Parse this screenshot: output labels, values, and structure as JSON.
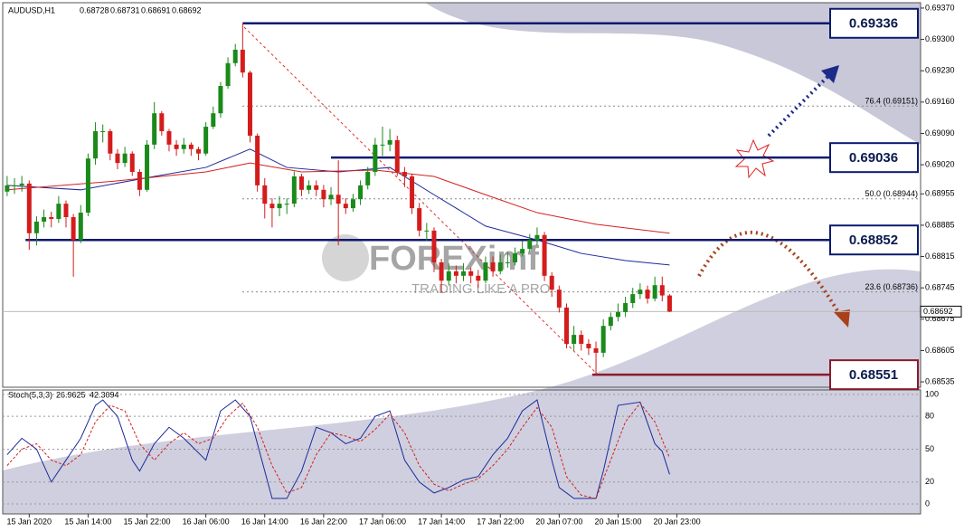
{
  "chart_data": {
    "type": "candlestick",
    "symbol": "AUDUSD,H1",
    "up_color": "#1a8a1a",
    "down_color": "#d41c1c",
    "ohlc": [
      [
        0.6896,
        0.68995,
        0.6895,
        0.68974
      ],
      [
        0.68974,
        0.6899,
        0.68955,
        0.68974
      ],
      [
        0.68974,
        0.68995,
        0.6896,
        0.68978
      ],
      [
        0.68978,
        0.68985,
        0.6883,
        0.68867
      ],
      [
        0.68867,
        0.68905,
        0.6884,
        0.68893
      ],
      [
        0.68893,
        0.6892,
        0.6888,
        0.68903
      ],
      [
        0.68903,
        0.68915,
        0.6888,
        0.68899
      ],
      [
        0.68899,
        0.6895,
        0.6889,
        0.68933
      ],
      [
        0.68933,
        0.6894,
        0.6888,
        0.68903
      ],
      [
        0.68903,
        0.6891,
        0.6877,
        0.68852
      ],
      [
        0.68852,
        0.6893,
        0.68845,
        0.68913
      ],
      [
        0.68913,
        0.69045,
        0.68905,
        0.69034
      ],
      [
        0.69034,
        0.69115,
        0.6902,
        0.69095
      ],
      [
        0.69095,
        0.6911,
        0.6907,
        0.69095
      ],
      [
        0.69095,
        0.691,
        0.6903,
        0.69045
      ],
      [
        0.69045,
        0.69055,
        0.6901,
        0.69024
      ],
      [
        0.69024,
        0.6906,
        0.69015,
        0.69045
      ],
      [
        0.69045,
        0.6905,
        0.68995,
        0.69004
      ],
      [
        0.69004,
        0.6901,
        0.6895,
        0.68964
      ],
      [
        0.68964,
        0.69075,
        0.6896,
        0.69065
      ],
      [
        0.69065,
        0.6916,
        0.69055,
        0.69135
      ],
      [
        0.69135,
        0.6914,
        0.69085,
        0.69095
      ],
      [
        0.69095,
        0.691,
        0.6905,
        0.69065
      ],
      [
        0.69065,
        0.69075,
        0.6904,
        0.69055
      ],
      [
        0.69055,
        0.6908,
        0.69045,
        0.69065
      ],
      [
        0.69065,
        0.6907,
        0.6904,
        0.69055
      ],
      [
        0.69055,
        0.6906,
        0.6903,
        0.69045
      ],
      [
        0.69045,
        0.69115,
        0.6904,
        0.69105
      ],
      [
        0.69105,
        0.6915,
        0.691,
        0.69135
      ],
      [
        0.69135,
        0.69205,
        0.69125,
        0.69196
      ],
      [
        0.69196,
        0.6926,
        0.6919,
        0.69247
      ],
      [
        0.69247,
        0.6929,
        0.6924,
        0.69277
      ],
      [
        0.69277,
        0.69336,
        0.69215,
        0.69226
      ],
      [
        0.69226,
        0.6923,
        0.6907,
        0.69085
      ],
      [
        0.69085,
        0.6909,
        0.6896,
        0.68974
      ],
      [
        0.68974,
        0.6899,
        0.689,
        0.68933
      ],
      [
        0.68933,
        0.68945,
        0.6888,
        0.68923
      ],
      [
        0.68923,
        0.6895,
        0.68905,
        0.68933
      ],
      [
        0.68933,
        0.68945,
        0.6891,
        0.68933
      ],
      [
        0.68933,
        0.69005,
        0.68925,
        0.68994
      ],
      [
        0.68994,
        0.69,
        0.6895,
        0.68964
      ],
      [
        0.68964,
        0.68985,
        0.68955,
        0.68974
      ],
      [
        0.68974,
        0.68985,
        0.6895,
        0.68964
      ],
      [
        0.68964,
        0.68975,
        0.68925,
        0.68943
      ],
      [
        0.68943,
        0.6897,
        0.6893,
        0.68953
      ],
      [
        0.68953,
        0.6903,
        0.6884,
        0.68933
      ],
      [
        0.68933,
        0.68945,
        0.6891,
        0.68923
      ],
      [
        0.68923,
        0.68955,
        0.68915,
        0.68943
      ],
      [
        0.68943,
        0.68985,
        0.6893,
        0.68974
      ],
      [
        0.68974,
        0.69015,
        0.68965,
        0.69004
      ],
      [
        0.69004,
        0.6908,
        0.68995,
        0.69065
      ],
      [
        0.69065,
        0.69105,
        0.6904,
        0.69065
      ],
      [
        0.69065,
        0.691,
        0.6905,
        0.69075
      ],
      [
        0.69075,
        0.69085,
        0.68995,
        0.69004
      ],
      [
        0.69004,
        0.69015,
        0.6897,
        0.68994
      ],
      [
        0.68994,
        0.69,
        0.6891,
        0.68923
      ],
      [
        0.68923,
        0.68935,
        0.6886,
        0.68873
      ],
      [
        0.68873,
        0.6889,
        0.6885,
        0.68873
      ],
      [
        0.68873,
        0.6888,
        0.6878,
        0.68802
      ],
      [
        0.68802,
        0.6881,
        0.68735,
        0.68761
      ],
      [
        0.68761,
        0.688,
        0.6875,
        0.68782
      ],
      [
        0.68782,
        0.68795,
        0.68755,
        0.68772
      ],
      [
        0.68772,
        0.688,
        0.6876,
        0.68782
      ],
      [
        0.68782,
        0.6879,
        0.68755,
        0.68772
      ],
      [
        0.68772,
        0.68785,
        0.68745,
        0.68761
      ],
      [
        0.68761,
        0.68815,
        0.68755,
        0.68802
      ],
      [
        0.68802,
        0.68815,
        0.6877,
        0.68782
      ],
      [
        0.68782,
        0.6882,
        0.68775,
        0.68802
      ],
      [
        0.68802,
        0.68825,
        0.6879,
        0.68802
      ],
      [
        0.68802,
        0.68835,
        0.68795,
        0.68822
      ],
      [
        0.68822,
        0.6885,
        0.68815,
        0.68832
      ],
      [
        0.68832,
        0.68865,
        0.68825,
        0.68852
      ],
      [
        0.68852,
        0.6888,
        0.6884,
        0.68863
      ],
      [
        0.68863,
        0.6887,
        0.6876,
        0.68772
      ],
      [
        0.68772,
        0.6878,
        0.68725,
        0.68741
      ],
      [
        0.68741,
        0.6875,
        0.6869,
        0.68701
      ],
      [
        0.68701,
        0.6871,
        0.6861,
        0.6862
      ],
      [
        0.6862,
        0.6866,
        0.68605,
        0.6864
      ],
      [
        0.6864,
        0.6865,
        0.68605,
        0.6862
      ],
      [
        0.6862,
        0.6863,
        0.68595,
        0.6861
      ],
      [
        0.6861,
        0.68625,
        0.68551,
        0.686
      ],
      [
        0.686,
        0.68675,
        0.6859,
        0.6866
      ],
      [
        0.6866,
        0.6869,
        0.6865,
        0.6868
      ],
      [
        0.6868,
        0.6871,
        0.6867,
        0.68691
      ],
      [
        0.68691,
        0.68725,
        0.6868,
        0.68711
      ],
      [
        0.68711,
        0.68745,
        0.687,
        0.68731
      ],
      [
        0.68731,
        0.68755,
        0.6872,
        0.68741
      ],
      [
        0.68741,
        0.6875,
        0.6871,
        0.68721
      ],
      [
        0.68721,
        0.6877,
        0.68715,
        0.68751
      ],
      [
        0.68751,
        0.6877,
        0.68715,
        0.68728
      ],
      [
        0.68728,
        0.68731,
        0.68691,
        0.68692
      ]
    ],
    "lines": [
      {
        "color": "#1c2a9a",
        "x": [
          0,
          10,
          20,
          27,
          33,
          38,
          45,
          52,
          58,
          65,
          72,
          78,
          84,
          90
        ],
        "values": [
          0.68974,
          0.68964,
          0.68994,
          0.69014,
          0.69055,
          0.69014,
          0.69004,
          0.69014,
          0.68953,
          0.68883,
          0.68852,
          0.68822,
          0.68806,
          0.68796
        ]
      },
      {
        "color": "#d42020",
        "x": [
          0,
          15,
          27,
          33,
          40,
          50,
          58,
          65,
          72,
          80,
          90
        ],
        "values": [
          0.68964,
          0.68984,
          0.69004,
          0.69024,
          0.69004,
          0.69008,
          0.68994,
          0.68953,
          0.68913,
          0.68887,
          0.68867
        ]
      }
    ],
    "xlim": [
      -0.6,
      124.1
    ],
    "ylim": [
      0.68523,
      0.69382
    ],
    "xticks": [
      {
        "value": 3,
        "label": "15 Jan 2020"
      },
      {
        "value": 11,
        "label": "15 Jan 14:00"
      },
      {
        "value": 19,
        "label": "15 Jan 22:00"
      },
      {
        "value": 27,
        "label": "16 Jan 06:00"
      },
      {
        "value": 35,
        "label": "16 Jan 14:00"
      },
      {
        "value": 43,
        "label": "16 Jan 22:00"
      },
      {
        "value": 51,
        "label": "17 Jan 06:00"
      },
      {
        "value": 59,
        "label": "17 Jan 14:00"
      },
      {
        "value": 67,
        "label": "17 Jan 22:00"
      },
      {
        "value": 75,
        "label": "20 Jan 07:00"
      },
      {
        "value": 83,
        "label": "20 Jan 15:00"
      },
      {
        "value": 91,
        "label": "20 Jan 23:00"
      }
    ],
    "yticks": [
      {
        "value": 0.6937,
        "label": "0.69370"
      },
      {
        "value": 0.693,
        "label": "0.69300"
      },
      {
        "value": 0.6923,
        "label": "0.69230"
      },
      {
        "value": 0.6916,
        "label": "0.69160"
      },
      {
        "value": 0.6909,
        "label": "0.69090"
      },
      {
        "value": 0.6902,
        "label": "0.69020"
      },
      0.68955,
      0.68885,
      0.68815,
      0.68745,
      0.68675,
      0.68605,
      0.68535
    ],
    "levels": [
      {
        "value": 0.69336,
        "start": 32,
        "color": "#0b1a6e"
      },
      {
        "value": 0.69036,
        "start": 44,
        "color": "#0b1a6e"
      },
      {
        "value": 0.68852,
        "start": 2.5,
        "color": "#0b1a6e"
      },
      {
        "value": 0.68551,
        "start": 79.5,
        "color": "#8a1a2a"
      }
    ],
    "fib": [
      {
        "value": 0.69151,
        "label": "76.4 (0.69151)"
      },
      {
        "value": 0.68944,
        "label": "50.0 (0.68944)"
      },
      {
        "value": 0.68736,
        "label": "23.6 (0.68736)"
      }
    ],
    "watermark": {
      "brand": "FOREXimf",
      "slogan": "TRADING LIKE A PRO"
    },
    "stoch": {
      "title": "Stoch(5,3,3)",
      "k_last": 26.9625,
      "d_last": 42.3094,
      "ylim": [
        -9.1,
        104.1
      ],
      "yticks": [
        0,
        20,
        50,
        80,
        100
      ],
      "k": {
        "color": "#1c2a9a",
        "x": [
          0,
          2,
          4,
          6,
          8,
          10,
          12,
          13,
          15,
          17,
          18,
          20,
          22,
          24,
          27,
          29,
          31,
          33,
          35,
          36,
          38,
          40,
          42,
          44,
          46,
          48,
          50,
          52,
          54,
          56,
          58,
          60,
          62,
          64,
          66,
          68,
          70,
          72,
          74,
          75,
          77,
          80,
          81,
          83,
          86,
          88,
          89,
          90
        ],
        "values": [
          45,
          60,
          50,
          20,
          40,
          60,
          90,
          95,
          80,
          40,
          30,
          55,
          70,
          60,
          40,
          85,
          95,
          80,
          30,
          5,
          5,
          30,
          70,
          65,
          55,
          60,
          80,
          85,
          40,
          20,
          10,
          15,
          22,
          25,
          45,
          60,
          85,
          95,
          40,
          15,
          5,
          5,
          30,
          90,
          93,
          55,
          48,
          27
        ]
      },
      "d": {
        "color": "#d42020",
        "x": [
          0,
          2,
          4,
          6,
          8,
          10,
          12,
          14,
          16,
          18,
          20,
          22,
          24,
          26,
          28,
          30,
          32,
          34,
          36,
          38,
          40,
          42,
          44,
          46,
          48,
          50,
          52,
          54,
          56,
          58,
          60,
          62,
          64,
          66,
          68,
          70,
          72,
          74,
          76,
          78,
          80,
          82,
          84,
          86,
          88,
          90
        ],
        "values": [
          35,
          50,
          55,
          40,
          35,
          45,
          75,
          90,
          85,
          55,
          40,
          55,
          65,
          55,
          60,
          80,
          92,
          70,
          35,
          10,
          15,
          45,
          65,
          62,
          57,
          68,
          82,
          65,
          35,
          18,
          12,
          18,
          23,
          35,
          50,
          70,
          88,
          70,
          25,
          8,
          5,
          40,
          75,
          92,
          75,
          42
        ]
      }
    }
  }
}
